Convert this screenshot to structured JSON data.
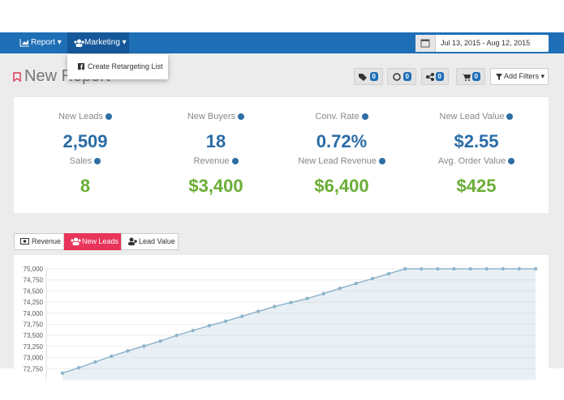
{
  "nav": {
    "report": "Report",
    "marketing": "Marketing",
    "date_range": "Jul 13, 2015 - Aug 12, 2015"
  },
  "dropdown": {
    "item": "Create Retargeting List"
  },
  "page_title": "New Report",
  "toolbar": {
    "tags": 0,
    "views": 0,
    "shares": 0,
    "cart": 0,
    "add_filters": "Add Filters"
  },
  "metrics": [
    {
      "label": "New Leads",
      "value": "2,509"
    },
    {
      "label": "New Buyers",
      "value": "18"
    },
    {
      "label": "Conv. Rate",
      "value": "0.72%"
    },
    {
      "label": "New Lead Value",
      "value": "$2.55"
    },
    {
      "label": "Sales",
      "value": "8"
    },
    {
      "label": "Revenue",
      "value": "$3,400"
    },
    {
      "label": "New Lead Revenue",
      "value": "$6,400"
    },
    {
      "label": "Avg. Order Value",
      "value": "$425"
    }
  ],
  "tabs": [
    "Revenue",
    "New Leads",
    "Lead Value"
  ],
  "chart_data": {
    "type": "area",
    "categories": [
      null,
      null,
      null,
      null,
      null,
      null,
      null,
      null,
      null,
      null,
      null,
      null,
      null,
      null,
      null,
      null,
      null,
      null,
      null,
      null,
      null,
      null,
      null,
      null,
      null,
      null,
      null,
      null,
      null,
      null
    ],
    "values": [
      72650,
      72770,
      72900,
      73030,
      73150,
      73260,
      73370,
      73500,
      73610,
      73720,
      73820,
      73930,
      74040,
      74150,
      74240,
      74330,
      74440,
      74560,
      74670,
      74780,
      74890,
      75000,
      75000,
      75000,
      75000,
      75000,
      75000,
      75000,
      75000,
      75000
    ],
    "color": "#8fb4cc",
    "ylim": [
      72500,
      75000
    ],
    "yticks": [
      {
        "value": 72750,
        "label": "72,750"
      },
      {
        "value": 73000,
        "label": "73,000"
      },
      {
        "value": 73250,
        "label": "73,250"
      },
      {
        "value": 73500,
        "label": "73,500"
      },
      {
        "value": 73750,
        "label": "73,750"
      },
      {
        "value": 74000,
        "label": "74,000"
      },
      {
        "value": 74250,
        "label": "74,250"
      },
      {
        "value": 74500,
        "label": "74,500"
      },
      {
        "value": 74750,
        "label": "74,750"
      },
      {
        "value": 75000,
        "label": "75,000"
      }
    ],
    "grid": true
  }
}
